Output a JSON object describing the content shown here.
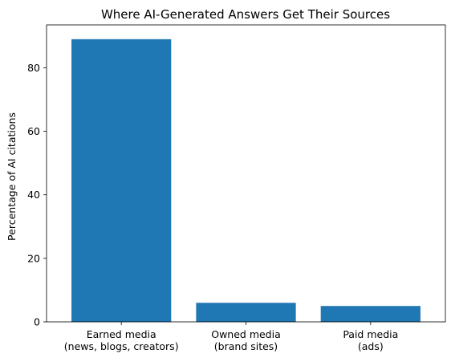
{
  "chart_data": {
    "type": "bar",
    "title": "Where AI-Generated Answers Get Their Sources",
    "xlabel": "",
    "ylabel": "Percentage of AI citations",
    "categories": [
      [
        "Earned media",
        "(news, blogs, creators)"
      ],
      [
        "Owned media",
        "(brand sites)"
      ],
      [
        "Paid media",
        "(ads)"
      ]
    ],
    "values": [
      89,
      6,
      5
    ],
    "ylim": [
      0,
      93.5
    ],
    "yticks": [
      0,
      20,
      40,
      60,
      80
    ],
    "grid": false,
    "bar_color": "#1f77b4"
  }
}
